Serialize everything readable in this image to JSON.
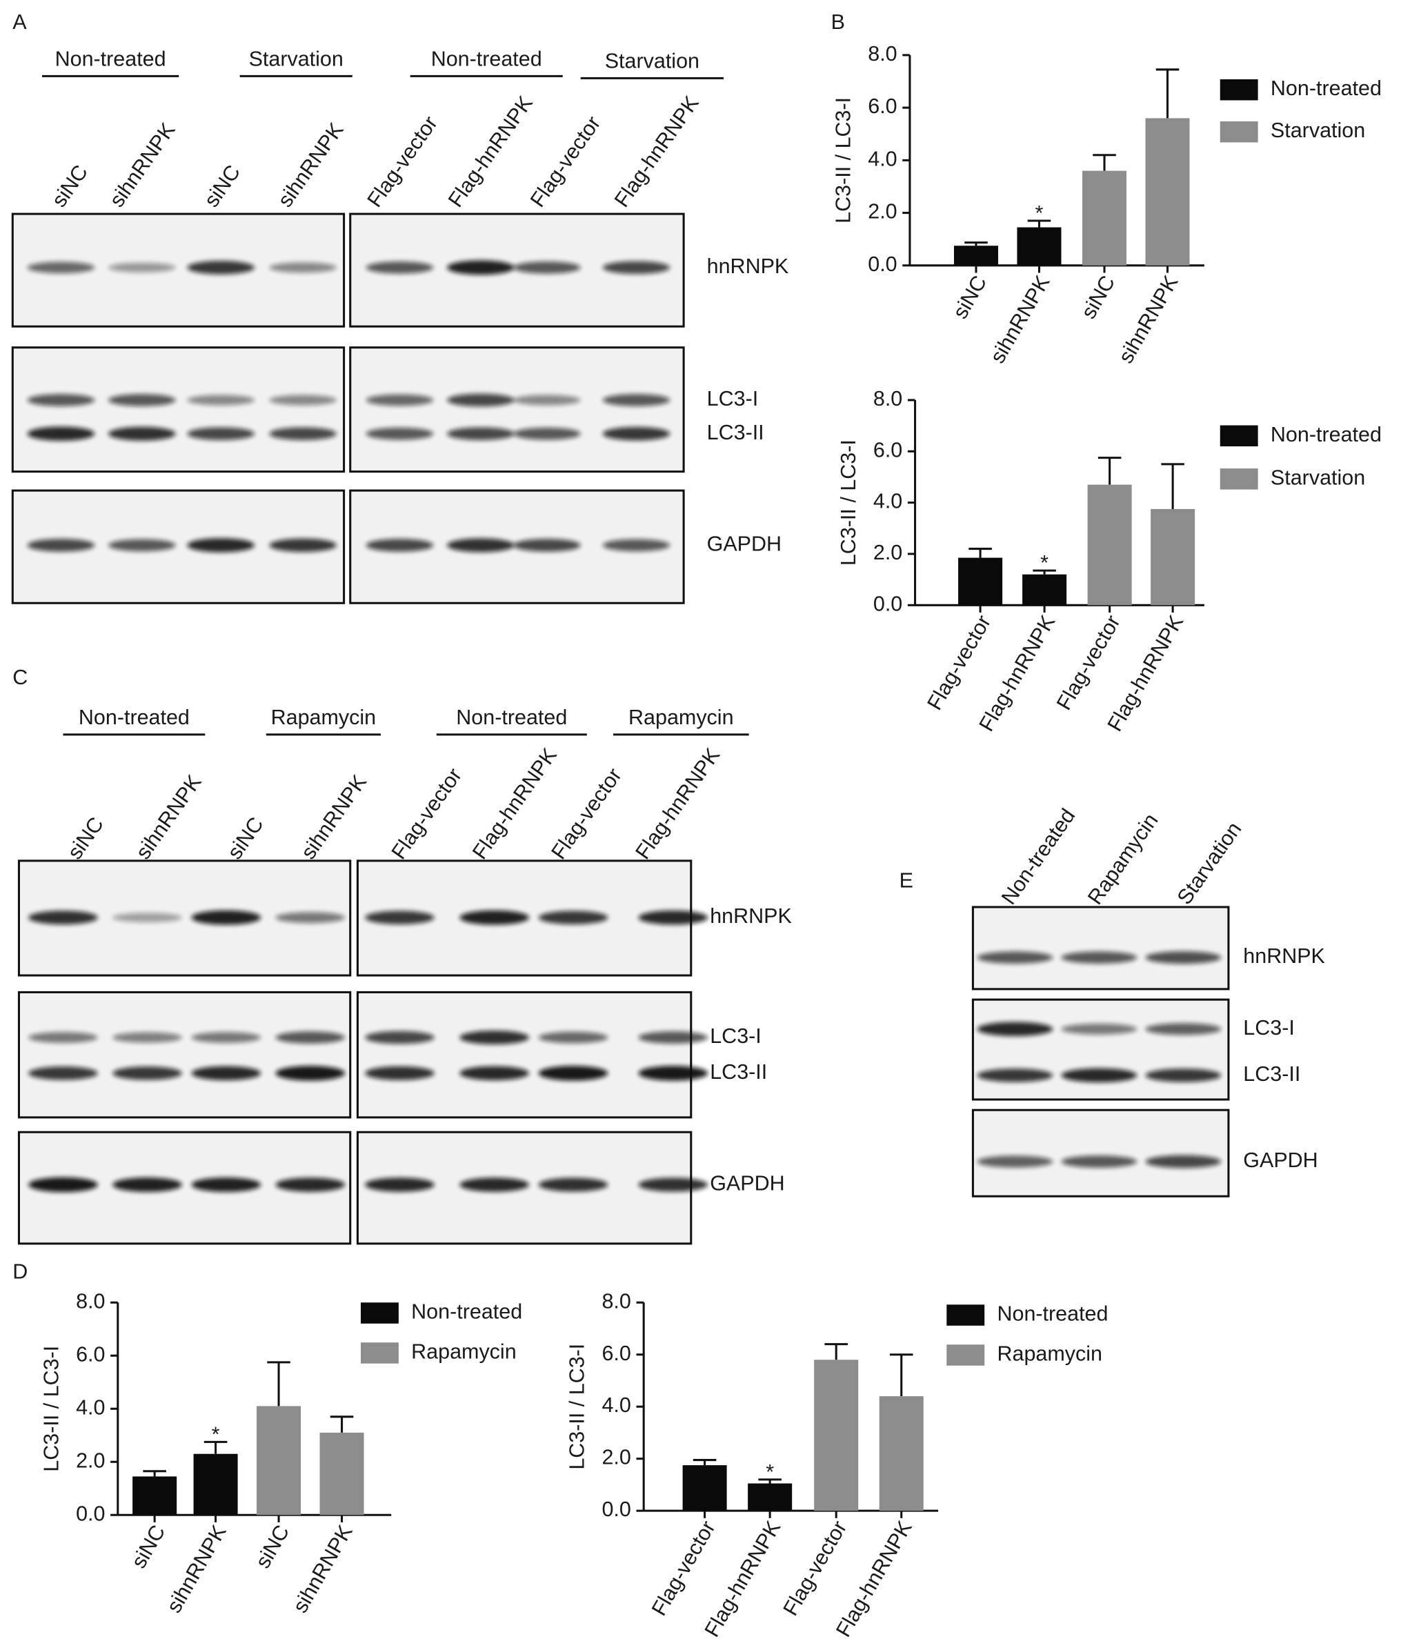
{
  "panel_labels": [
    "A",
    "B",
    "C",
    "D",
    "E"
  ],
  "blot_A": {
    "groups": [
      "Non-treated",
      "Starvation",
      "Non-treated",
      "Starvation"
    ],
    "lanes": [
      "siNC",
      "sihnRNPK",
      "siNC",
      "sihnRNPK",
      "Flag-vector",
      "Flag-hnRNPK",
      "Flag-vector",
      "Flag-hnRNPK"
    ],
    "proteins": [
      "hnRNPK",
      "LC3-I",
      "LC3-II",
      "GAPDH"
    ]
  },
  "blot_C": {
    "groups": [
      "Non-treated",
      "Rapamycin",
      "Non-treated",
      "Rapamycin"
    ],
    "lanes": [
      "siNC",
      "sihnRNPK",
      "siNC",
      "sihnRNPK",
      "Flag-vector",
      "Flag-hnRNPK",
      "Flag-vector",
      "Flag-hnRNPK"
    ],
    "proteins": [
      "hnRNPK",
      "LC3-I",
      "LC3-II",
      "GAPDH"
    ]
  },
  "blot_E": {
    "lanes": [
      "Non-treated",
      "Rapamycin",
      "Starvation"
    ],
    "proteins": [
      "hnRNPK",
      "LC3-I",
      "LC3-II",
      "GAPDH"
    ]
  },
  "chart_data": [
    {
      "type": "bar",
      "ylabel": "LC3-II / LC3-I",
      "categories": [
        "siNC",
        "sihnRNPK",
        "siNC",
        "sihnRNPK"
      ],
      "series": [
        {
          "name": "Non-treated",
          "color": "#0a0a0a",
          "values": [
            0.75,
            1.45,
            null,
            null
          ],
          "errors": [
            0.12,
            0.25,
            null,
            null
          ]
        },
        {
          "name": "Starvation",
          "color": "#8c8c8c",
          "values": [
            null,
            null,
            3.6,
            5.6
          ],
          "errors": [
            null,
            null,
            0.6,
            1.85
          ]
        }
      ],
      "ylim": [
        0,
        8
      ],
      "yticks": [
        {
          "value": 0,
          "label": "0.0"
        },
        {
          "value": 2,
          "label": "2.0"
        },
        {
          "value": 4,
          "label": "4.0"
        },
        {
          "value": 6,
          "label": "6.0"
        },
        {
          "value": 8,
          "label": "8.0"
        }
      ],
      "annotations": [
        {
          "text": "*",
          "category": 1
        }
      ]
    },
    {
      "type": "bar",
      "ylabel": "LC3-II / LC3-I",
      "categories": [
        "Flag-vector",
        "Flag-hnRNPK",
        "Flag-vector",
        "Flag-hnRNPK"
      ],
      "series": [
        {
          "name": "Non-treated",
          "color": "#0a0a0a",
          "values": [
            1.85,
            1.2,
            null,
            null
          ],
          "errors": [
            0.35,
            0.15,
            null,
            null
          ]
        },
        {
          "name": "Starvation",
          "color": "#8c8c8c",
          "values": [
            null,
            null,
            4.7,
            3.75
          ],
          "errors": [
            null,
            null,
            1.05,
            1.75
          ]
        }
      ],
      "ylim": [
        0,
        8
      ],
      "yticks": [
        {
          "value": 0,
          "label": "0.0"
        },
        {
          "value": 2,
          "label": "2.0"
        },
        {
          "value": 4,
          "label": "4.0"
        },
        {
          "value": 6,
          "label": "6.0"
        },
        {
          "value": 8,
          "label": "8.0"
        }
      ],
      "annotations": [
        {
          "text": "*",
          "category": 1
        }
      ]
    },
    {
      "type": "bar",
      "ylabel": "LC3-II / LC3-I",
      "categories": [
        "siNC",
        "sihnRNPK",
        "siNC",
        "sihnRNPK"
      ],
      "series": [
        {
          "name": "Non-treated",
          "color": "#0a0a0a",
          "values": [
            1.45,
            2.3,
            null,
            null
          ],
          "errors": [
            0.2,
            0.45,
            null,
            null
          ]
        },
        {
          "name": "Rapamycin",
          "color": "#8c8c8c",
          "values": [
            null,
            null,
            4.1,
            3.1
          ],
          "errors": [
            null,
            null,
            1.65,
            0.6
          ]
        }
      ],
      "ylim": [
        0,
        8
      ],
      "yticks": [
        {
          "value": 0,
          "label": "0.0"
        },
        {
          "value": 2,
          "label": "2.0"
        },
        {
          "value": 4,
          "label": "4.0"
        },
        {
          "value": 6,
          "label": "6.0"
        },
        {
          "value": 8,
          "label": "8.0"
        }
      ],
      "annotations": [
        {
          "text": "*",
          "category": 1
        }
      ]
    },
    {
      "type": "bar",
      "ylabel": "LC3-II / LC3-I",
      "categories": [
        "Flag-vector",
        "Flag-hnRNPK",
        "Flag-vector",
        "Flag-hnRNPK"
      ],
      "series": [
        {
          "name": "Non-treated",
          "color": "#0a0a0a",
          "values": [
            1.75,
            1.05,
            null,
            null
          ],
          "errors": [
            0.2,
            0.15,
            null,
            null
          ]
        },
        {
          "name": "Rapamycin",
          "color": "#8c8c8c",
          "values": [
            null,
            null,
            5.8,
            4.4
          ],
          "errors": [
            null,
            null,
            0.6,
            1.6
          ]
        }
      ],
      "ylim": [
        0,
        8
      ],
      "yticks": [
        {
          "value": 0,
          "label": "0.0"
        },
        {
          "value": 2,
          "label": "2.0"
        },
        {
          "value": 4,
          "label": "4.0"
        },
        {
          "value": 6,
          "label": "6.0"
        },
        {
          "value": 8,
          "label": "8.0"
        }
      ],
      "annotations": [
        {
          "text": "*",
          "category": 1
        }
      ]
    }
  ]
}
